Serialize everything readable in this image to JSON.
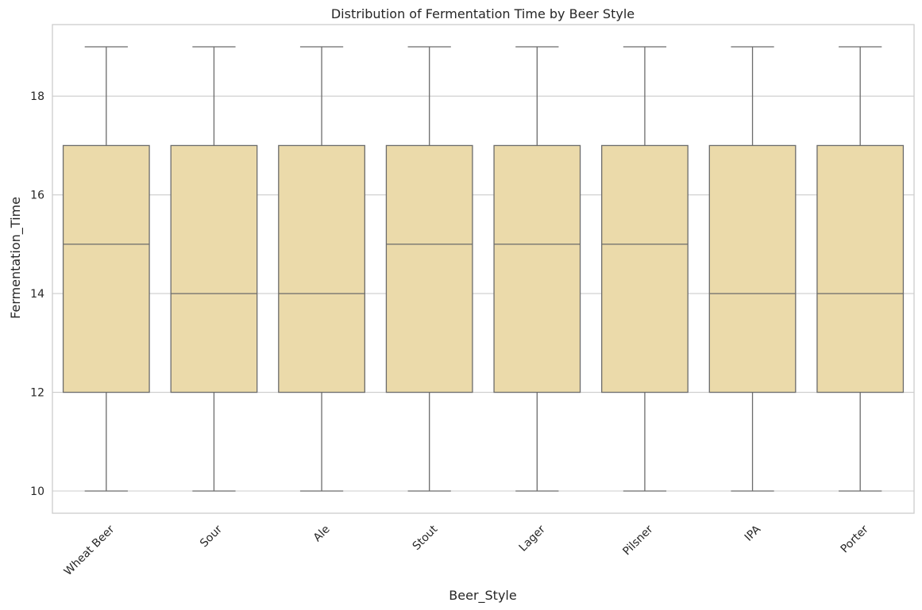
{
  "chart_data": {
    "type": "box",
    "title": "Distribution of Fermentation Time by Beer Style",
    "xlabel": "Beer_Style",
    "ylabel": "Fermentation_Time",
    "ylim": [
      9.55,
      19.45
    ],
    "yticks": [
      10,
      12,
      14,
      16,
      18
    ],
    "grid": "horizontal",
    "box_color": "#ebdaaa",
    "line_color": "#6b6b6b",
    "categories": [
      "Wheat Beer",
      "Sour",
      "Ale",
      "Stout",
      "Lager",
      "Pilsner",
      "IPA",
      "Porter"
    ],
    "boxes": [
      {
        "min": 10,
        "q1": 12,
        "median": 15,
        "q3": 17,
        "max": 19
      },
      {
        "min": 10,
        "q1": 12,
        "median": 14,
        "q3": 17,
        "max": 19
      },
      {
        "min": 10,
        "q1": 12,
        "median": 14,
        "q3": 17,
        "max": 19
      },
      {
        "min": 10,
        "q1": 12,
        "median": 15,
        "q3": 17,
        "max": 19
      },
      {
        "min": 10,
        "q1": 12,
        "median": 15,
        "q3": 17,
        "max": 19
      },
      {
        "min": 10,
        "q1": 12,
        "median": 15,
        "q3": 17,
        "max": 19
      },
      {
        "min": 10,
        "q1": 12,
        "median": 14,
        "q3": 17,
        "max": 19
      },
      {
        "min": 10,
        "q1": 12,
        "median": 14,
        "q3": 17,
        "max": 19
      }
    ]
  }
}
